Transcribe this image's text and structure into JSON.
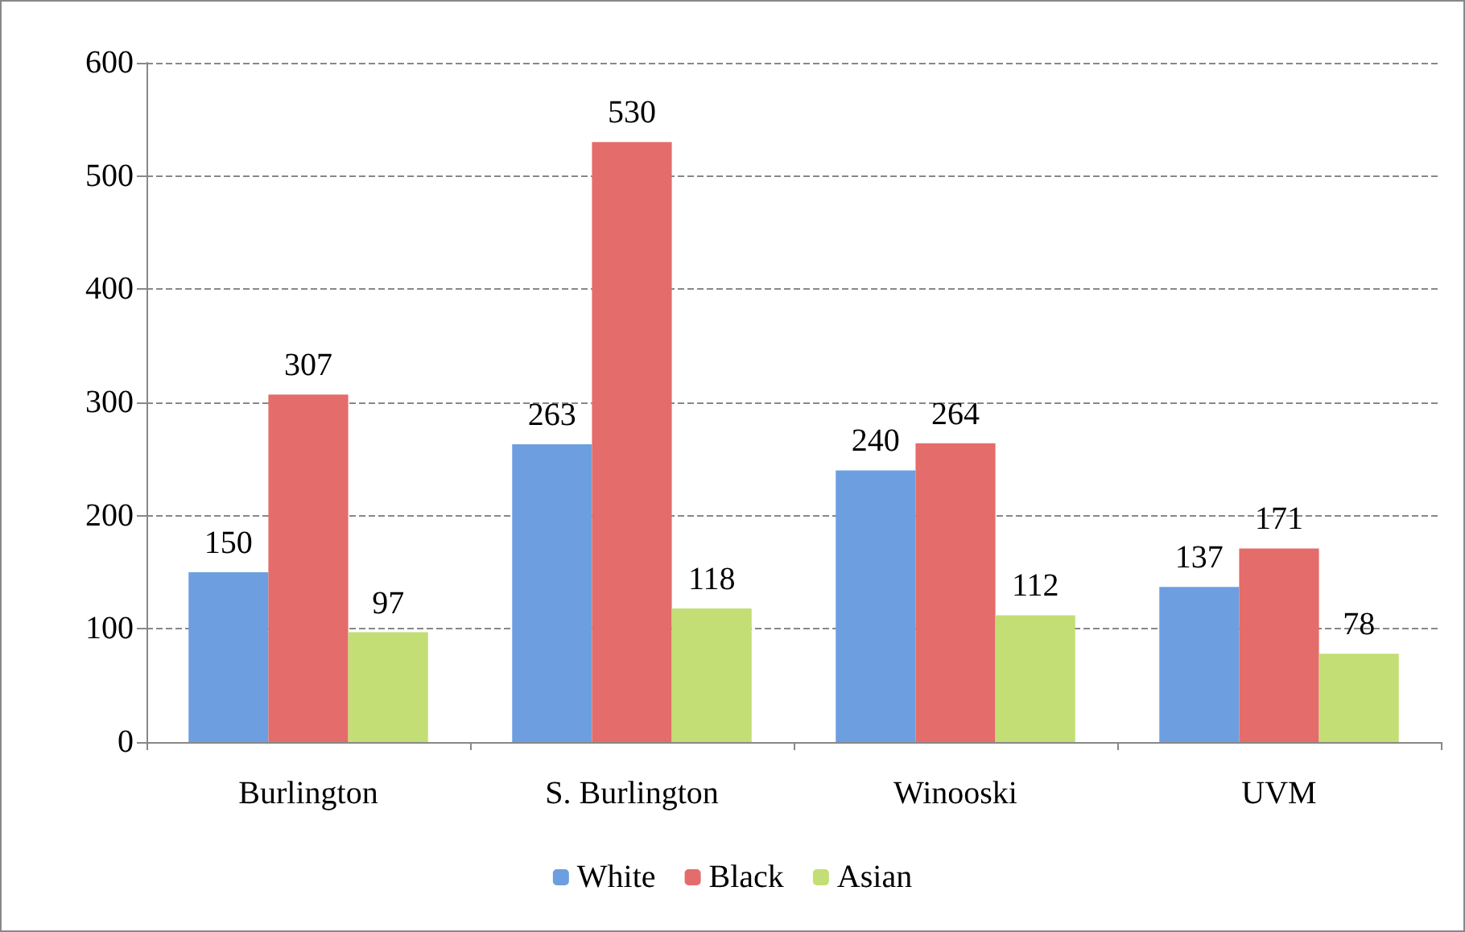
{
  "chart_data": {
    "type": "bar",
    "categories": [
      "Burlington",
      "S. Burlington",
      "Winooski",
      "UVM"
    ],
    "series": [
      {
        "name": "White",
        "color": "#6d9fe0",
        "values": [
          150,
          263,
          240,
          137
        ]
      },
      {
        "name": "Black",
        "color": "#e46c6a",
        "values": [
          307,
          530,
          264,
          171
        ]
      },
      {
        "name": "Asian",
        "color": "#c3de74",
        "values": [
          97,
          118,
          112,
          78
        ]
      }
    ],
    "ylim": [
      0,
      600
    ],
    "yticks": [
      0,
      100,
      200,
      300,
      400,
      500,
      600
    ],
    "grid": "y",
    "legend": "bottom",
    "data_labels": true
  }
}
